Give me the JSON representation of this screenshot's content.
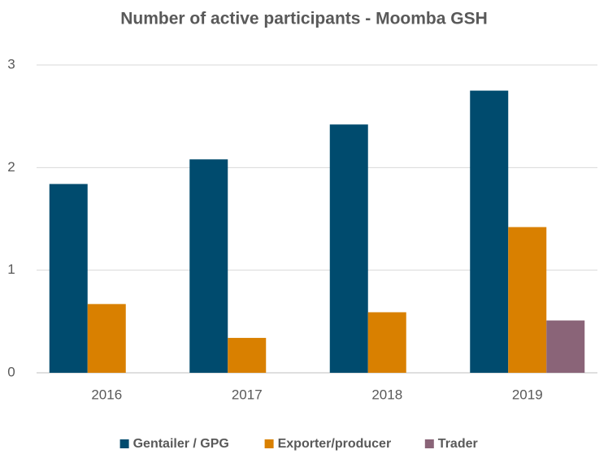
{
  "chart_data": {
    "type": "bar",
    "title": "Number of active participants - Moomba GSH",
    "categories": [
      "2016",
      "2017",
      "2018",
      "2019"
    ],
    "series": [
      {
        "name": "Gentailer / GPG",
        "color": "#004b6e",
        "values": [
          1.84,
          2.08,
          2.42,
          2.75
        ]
      },
      {
        "name": "Exporter/producer",
        "color": "#d98000",
        "values": [
          0.67,
          0.34,
          0.59,
          1.42
        ]
      },
      {
        "name": "Trader",
        "color": "#8a6478",
        "values": [
          0,
          0,
          0,
          0.51
        ]
      }
    ],
    "ylim": [
      0,
      3
    ],
    "yticks": [
      0,
      1,
      2,
      3
    ],
    "grid": true,
    "legend": "bottom"
  }
}
